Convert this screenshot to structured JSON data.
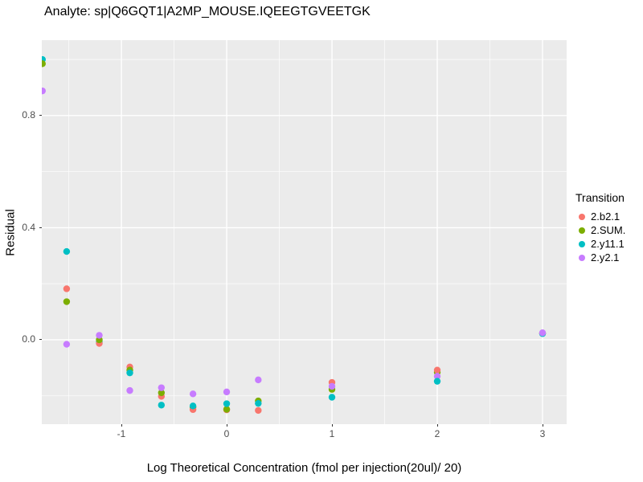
{
  "chart_data": {
    "type": "scatter",
    "title": "Analyte: sp|Q6GQT1|A2MP_MOUSE.IQEEGTGVEETGK",
    "xlabel": "Log Theoretical Concentration (fmol per injection(20ul)/ 20)",
    "ylabel": "Residual",
    "xlim": [
      -1.756,
      3.229
    ],
    "ylim": [
      -0.301,
      1.069
    ],
    "x_major_ticks": [
      -1,
      0,
      1,
      2,
      3
    ],
    "x_tick_labels": [
      "-1",
      "0",
      "1",
      "2",
      "3"
    ],
    "x_minor_ticks": [
      -1.5,
      -0.5,
      0.5,
      1.5,
      2.5
    ],
    "y_major_ticks": [
      0.0,
      0.4,
      0.8
    ],
    "y_tick_labels": [
      "0.0",
      "0.4",
      "0.8"
    ],
    "y_minor_ticks": [
      -0.2,
      0.2,
      0.6,
      1.0
    ],
    "grid": true,
    "panel_bg": "#EBEBEB",
    "gridline_color": "#FFFFFF",
    "legend_position": "right",
    "legend_title": "Transition",
    "point_radius": 4.2,
    "series": [
      {
        "name": "2.b2.1",
        "color": "#F8766D"
      },
      {
        "name": "2.SUM.",
        "color": "#7CAE00"
      },
      {
        "name": "2.y11.1",
        "color": "#00BFC4"
      },
      {
        "name": "2.y2.1",
        "color": "#C77CFF"
      }
    ],
    "points": [
      {
        "x": -1.75,
        "y": 1.0,
        "s": 2
      },
      {
        "x": -1.75,
        "y": 0.985,
        "s": 1
      },
      {
        "x": -1.75,
        "y": 0.888,
        "s": 3
      },
      {
        "x": -1.52,
        "y": 0.315,
        "s": 2
      },
      {
        "x": -1.52,
        "y": 0.182,
        "s": 0
      },
      {
        "x": -1.52,
        "y": 0.136,
        "s": 1
      },
      {
        "x": -1.52,
        "y": -0.016,
        "s": 3
      },
      {
        "x": -1.21,
        "y": -0.008,
        "s": 2
      },
      {
        "x": -1.21,
        "y": -0.013,
        "s": 0
      },
      {
        "x": -1.21,
        "y": 0.0,
        "s": 1
      },
      {
        "x": -1.21,
        "y": 0.016,
        "s": 3
      },
      {
        "x": -0.92,
        "y": -0.097,
        "s": 0
      },
      {
        "x": -0.92,
        "y": -0.108,
        "s": 1
      },
      {
        "x": -0.92,
        "y": -0.118,
        "s": 2
      },
      {
        "x": -0.92,
        "y": -0.181,
        "s": 3
      },
      {
        "x": -0.62,
        "y": -0.202,
        "s": 0
      },
      {
        "x": -0.62,
        "y": -0.189,
        "s": 1
      },
      {
        "x": -0.62,
        "y": -0.171,
        "s": 3
      },
      {
        "x": -0.62,
        "y": -0.233,
        "s": 2
      },
      {
        "x": -0.32,
        "y": -0.24,
        "s": 1
      },
      {
        "x": -0.32,
        "y": -0.249,
        "s": 0
      },
      {
        "x": -0.32,
        "y": -0.236,
        "s": 2
      },
      {
        "x": -0.32,
        "y": -0.193,
        "s": 3
      },
      {
        "x": 0.0,
        "y": -0.25,
        "s": 0
      },
      {
        "x": 0.0,
        "y": -0.248,
        "s": 1
      },
      {
        "x": 0.0,
        "y": -0.228,
        "s": 2
      },
      {
        "x": 0.0,
        "y": -0.186,
        "s": 3
      },
      {
        "x": 0.3,
        "y": -0.218,
        "s": 1
      },
      {
        "x": 0.3,
        "y": -0.252,
        "s": 0
      },
      {
        "x": 0.3,
        "y": -0.227,
        "s": 2
      },
      {
        "x": 0.3,
        "y": -0.143,
        "s": 3
      },
      {
        "x": 1.0,
        "y": -0.177,
        "s": 1
      },
      {
        "x": 1.0,
        "y": -0.152,
        "s": 0
      },
      {
        "x": 1.0,
        "y": -0.166,
        "s": 3
      },
      {
        "x": 1.0,
        "y": -0.205,
        "s": 2
      },
      {
        "x": 2.0,
        "y": -0.116,
        "s": 1
      },
      {
        "x": 2.0,
        "y": -0.108,
        "s": 0
      },
      {
        "x": 2.0,
        "y": -0.13,
        "s": 3
      },
      {
        "x": 2.0,
        "y": -0.148,
        "s": 2
      },
      {
        "x": 3.0,
        "y": 0.023,
        "s": 0
      },
      {
        "x": 3.0,
        "y": 0.023,
        "s": 1
      },
      {
        "x": 3.0,
        "y": 0.022,
        "s": 2
      },
      {
        "x": 3.0,
        "y": 0.025,
        "s": 3
      }
    ]
  }
}
